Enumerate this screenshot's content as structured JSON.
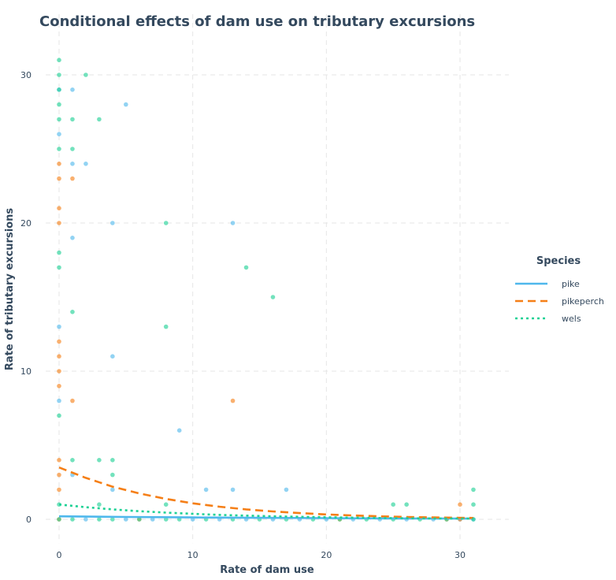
{
  "chart_data": {
    "type": "scatter",
    "title": "Conditional effects of dam use on tributary excursions",
    "xlabel": "Rate of dam use",
    "ylabel": "Rate of tributary excursions",
    "xlim": [
      -1,
      32
    ],
    "ylim": [
      -1.5,
      32.5
    ],
    "xticks": [
      0,
      10,
      20,
      30
    ],
    "yticks": [
      0,
      10,
      20,
      30
    ],
    "grid": true,
    "legend": {
      "title": "Species",
      "position": "right",
      "entries": [
        {
          "name": "pike",
          "color": "#4fb8ec",
          "linestyle": "solid"
        },
        {
          "name": "pikeperch",
          "color": "#f57f17",
          "linestyle": "dashed"
        },
        {
          "name": "wels",
          "color": "#1dd195",
          "linestyle": "dotted"
        }
      ]
    },
    "series": [
      {
        "name": "pike",
        "color": "#4fb8ec",
        "points": [
          [
            0,
            29
          ],
          [
            0,
            26
          ],
          [
            0,
            13
          ],
          [
            0,
            8
          ],
          [
            1,
            29
          ],
          [
            1,
            24
          ],
          [
            1,
            19
          ],
          [
            1,
            3
          ],
          [
            2,
            24
          ],
          [
            4,
            20
          ],
          [
            4,
            11
          ],
          [
            4,
            2
          ],
          [
            5,
            28
          ],
          [
            9,
            6
          ],
          [
            11,
            2
          ],
          [
            13,
            20
          ],
          [
            13,
            2
          ],
          [
            17,
            2
          ],
          [
            2,
            0
          ],
          [
            5,
            0
          ],
          [
            7,
            0
          ],
          [
            10,
            0
          ],
          [
            12,
            0
          ],
          [
            14,
            0
          ],
          [
            16,
            0
          ],
          [
            18,
            0
          ],
          [
            20,
            0
          ],
          [
            22,
            0
          ],
          [
            24,
            0
          ],
          [
            26,
            0
          ],
          [
            28,
            0
          ],
          [
            30,
            0
          ],
          [
            31,
            0
          ]
        ],
        "curve": [
          [
            0,
            0.2
          ],
          [
            5,
            0.16
          ],
          [
            10,
            0.13
          ],
          [
            15,
            0.1
          ],
          [
            20,
            0.08
          ],
          [
            25,
            0.06
          ],
          [
            31,
            0.05
          ]
        ]
      },
      {
        "name": "pikeperch",
        "color": "#f57f17",
        "points": [
          [
            0,
            24
          ],
          [
            0,
            23
          ],
          [
            0,
            21
          ],
          [
            0,
            20
          ],
          [
            0,
            12
          ],
          [
            0,
            11
          ],
          [
            0,
            10
          ],
          [
            0,
            9
          ],
          [
            0,
            4
          ],
          [
            0,
            3
          ],
          [
            0,
            2
          ],
          [
            1,
            23
          ],
          [
            1,
            8
          ],
          [
            13,
            8
          ],
          [
            30,
            1
          ],
          [
            0,
            0
          ],
          [
            6,
            0
          ],
          [
            21,
            0
          ],
          [
            29,
            0
          ],
          [
            30,
            0
          ]
        ],
        "curve": [
          [
            0,
            3.5
          ],
          [
            2,
            2.8
          ],
          [
            4,
            2.2
          ],
          [
            6,
            1.75
          ],
          [
            8,
            1.38
          ],
          [
            10,
            1.08
          ],
          [
            12,
            0.85
          ],
          [
            14,
            0.67
          ],
          [
            16,
            0.53
          ],
          [
            18,
            0.42
          ],
          [
            20,
            0.33
          ],
          [
            22,
            0.26
          ],
          [
            24,
            0.2
          ],
          [
            26,
            0.16
          ],
          [
            28,
            0.13
          ],
          [
            31,
            0.09
          ]
        ]
      },
      {
        "name": "wels",
        "color": "#1dd195",
        "points": [
          [
            0,
            31
          ],
          [
            0,
            30
          ],
          [
            0,
            29
          ],
          [
            0,
            28
          ],
          [
            0,
            27
          ],
          [
            0,
            25
          ],
          [
            0,
            18
          ],
          [
            0,
            17
          ],
          [
            0,
            7
          ],
          [
            0,
            1
          ],
          [
            1,
            27
          ],
          [
            1,
            25
          ],
          [
            1,
            14
          ],
          [
            1,
            4
          ],
          [
            2,
            30
          ],
          [
            3,
            27
          ],
          [
            3,
            4
          ],
          [
            3,
            1
          ],
          [
            4,
            4
          ],
          [
            4,
            3
          ],
          [
            8,
            20
          ],
          [
            8,
            13
          ],
          [
            8,
            1
          ],
          [
            14,
            17
          ],
          [
            16,
            15
          ],
          [
            25,
            1
          ],
          [
            26,
            1
          ],
          [
            31,
            2
          ],
          [
            31,
            1
          ],
          [
            0,
            0
          ],
          [
            1,
            0
          ],
          [
            3,
            0
          ],
          [
            4,
            0
          ],
          [
            6,
            0
          ],
          [
            8,
            0
          ],
          [
            9,
            0
          ],
          [
            11,
            0
          ],
          [
            13,
            0
          ],
          [
            15,
            0
          ],
          [
            17,
            0
          ],
          [
            19,
            0
          ],
          [
            21,
            0
          ],
          [
            23,
            0
          ],
          [
            25,
            0
          ],
          [
            27,
            0
          ],
          [
            29,
            0
          ],
          [
            31,
            0
          ]
        ],
        "curve": [
          [
            0,
            1.0
          ],
          [
            2,
            0.82
          ],
          [
            4,
            0.67
          ],
          [
            6,
            0.55
          ],
          [
            8,
            0.45
          ],
          [
            10,
            0.37
          ],
          [
            12,
            0.3
          ],
          [
            14,
            0.25
          ],
          [
            16,
            0.2
          ],
          [
            18,
            0.17
          ],
          [
            20,
            0.14
          ],
          [
            22,
            0.11
          ],
          [
            24,
            0.09
          ],
          [
            26,
            0.075
          ],
          [
            28,
            0.06
          ],
          [
            31,
            0.05
          ]
        ]
      }
    ]
  }
}
